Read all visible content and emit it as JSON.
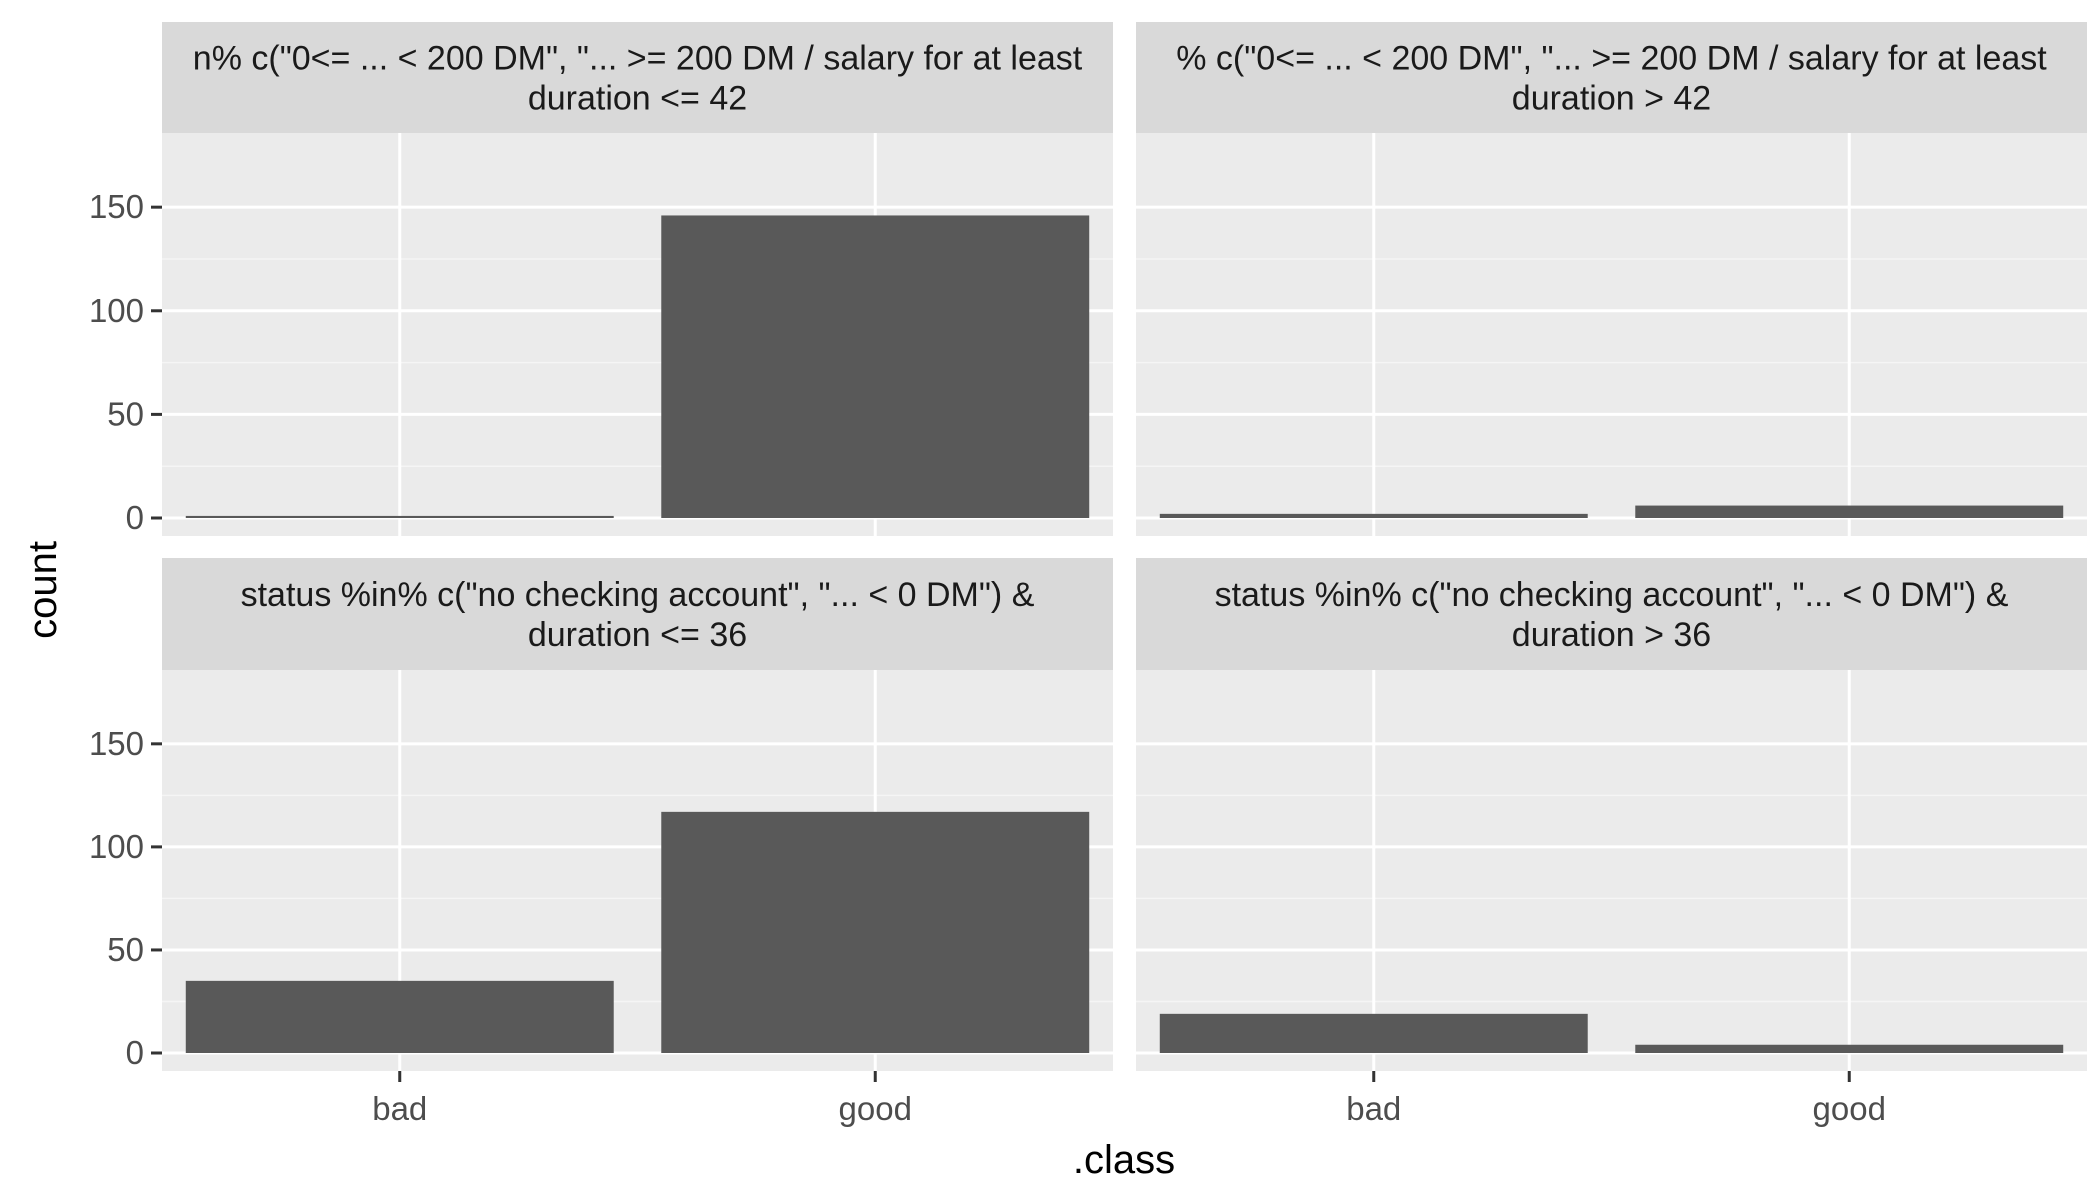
{
  "colors": {
    "panel_bg": "#EBEBEB",
    "strip_bg": "#D9D9D9",
    "grid_major": "#FFFFFF",
    "grid_minor": "#F5F5F5",
    "bar_fill": "#595959",
    "tick_color": "#333333"
  },
  "chart_data": {
    "type": "bar",
    "xlabel": ".class",
    "ylabel": "count",
    "categories": [
      "bad",
      "good"
    ],
    "ylim": [
      0,
      180
    ],
    "y_ticks": [
      0,
      50,
      100,
      150
    ],
    "grid": true,
    "facets": [
      {
        "label_lines": [
          "n% c(\"0<= ... < 200 DM\", \"... >= 200 DM / salary for at least",
          "duration <= 42"
        ],
        "values": [
          1,
          146
        ]
      },
      {
        "label_lines": [
          "% c(\"0<= ... < 200 DM\", \"... >= 200 DM / salary for at least",
          "duration > 42"
        ],
        "values": [
          2,
          6
        ]
      },
      {
        "label_lines": [
          "status %in% c(\"no checking account\", \"... < 0 DM\") &",
          "duration <= 36"
        ],
        "values": [
          35,
          117
        ]
      },
      {
        "label_lines": [
          "status %in% c(\"no checking account\", \"... < 0 DM\") &",
          "duration > 36"
        ],
        "values": [
          19,
          4
        ]
      }
    ]
  }
}
